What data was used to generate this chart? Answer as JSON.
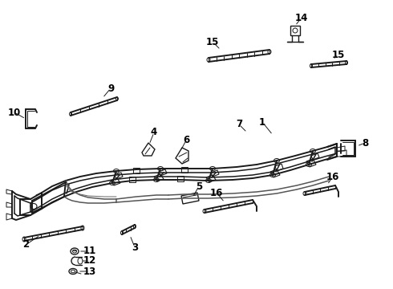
{
  "background_color": "#ffffff",
  "line_color": "#1a1a1a",
  "label_color": "#000000",
  "fig_w": 4.9,
  "fig_h": 3.6,
  "dpi": 100,
  "lw_frame": 1.4,
  "lw_rail": 1.1,
  "lw_thin": 0.7,
  "lw_comp": 1.0,
  "font_size": 8.5
}
